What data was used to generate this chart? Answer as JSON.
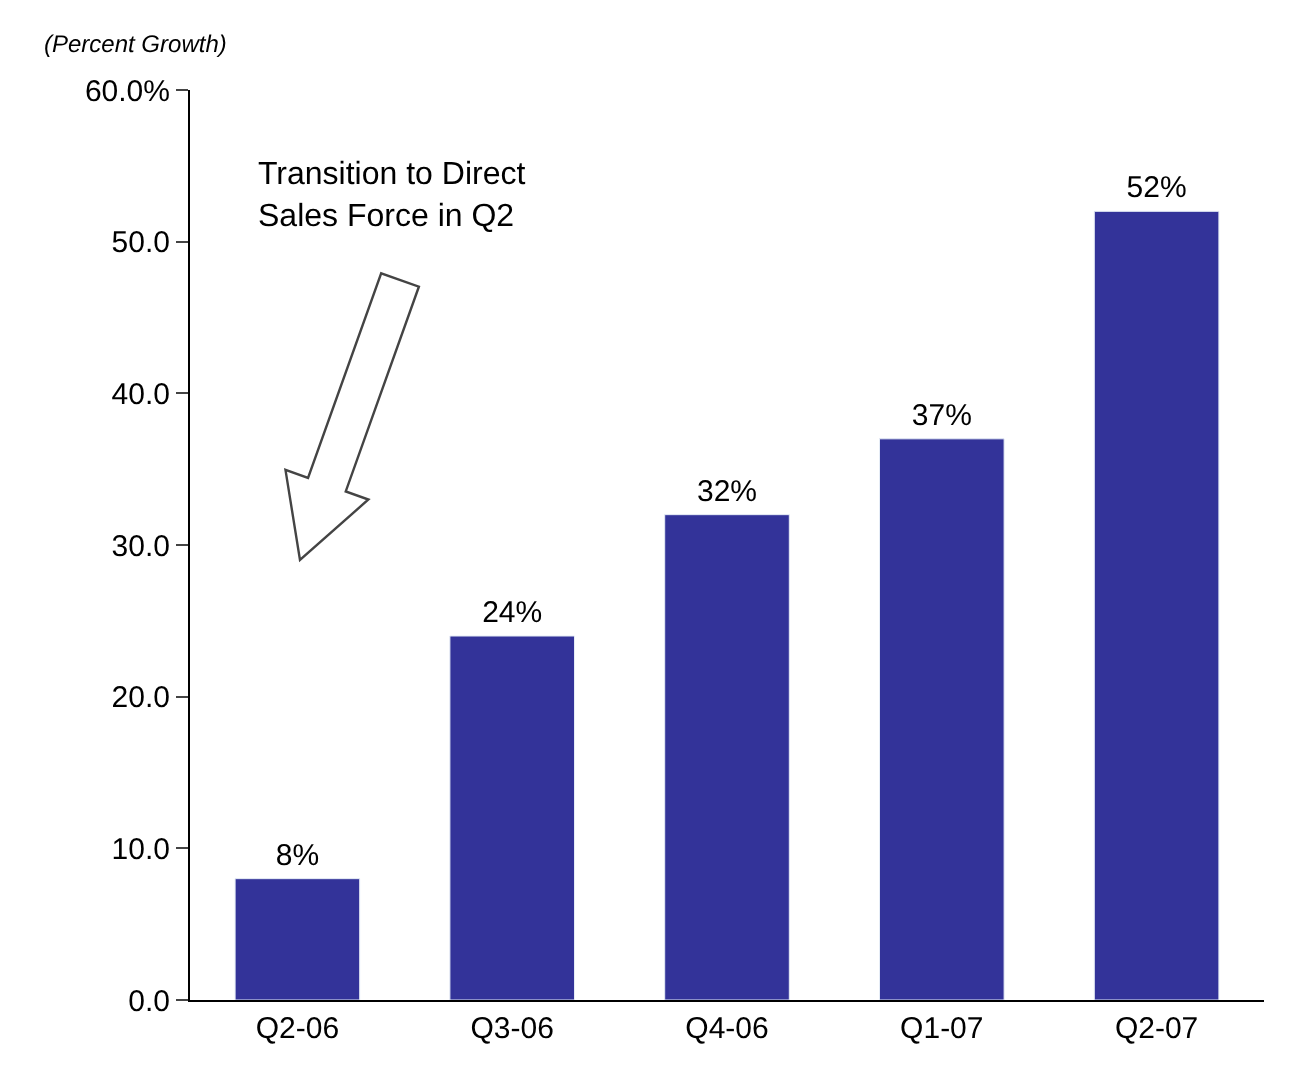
{
  "chart_data": {
    "type": "bar",
    "ylabel": "(Percent Growth)",
    "categories": [
      "Q2-06",
      "Q3-06",
      "Q4-06",
      "Q1-07",
      "Q2-07"
    ],
    "values": [
      8,
      24,
      32,
      37,
      52
    ],
    "color": "#333399",
    "value_labels": [
      "8%",
      "24%",
      "32%",
      "37%",
      "52%"
    ],
    "ylim": [
      0,
      60
    ],
    "yticks": [
      {
        "value": 0,
        "label": "0.0"
      },
      {
        "value": 10,
        "label": "10.0"
      },
      {
        "value": 20,
        "label": "20.0"
      },
      {
        "value": 30,
        "label": "30.0"
      },
      {
        "value": 40,
        "label": "40.0"
      },
      {
        "value": 50,
        "label": "50.0"
      },
      {
        "value": 60,
        "label": "60.0%"
      }
    ],
    "annotations": [
      "Transition to Direct\nSales Force in Q2"
    ],
    "legend": false
  }
}
